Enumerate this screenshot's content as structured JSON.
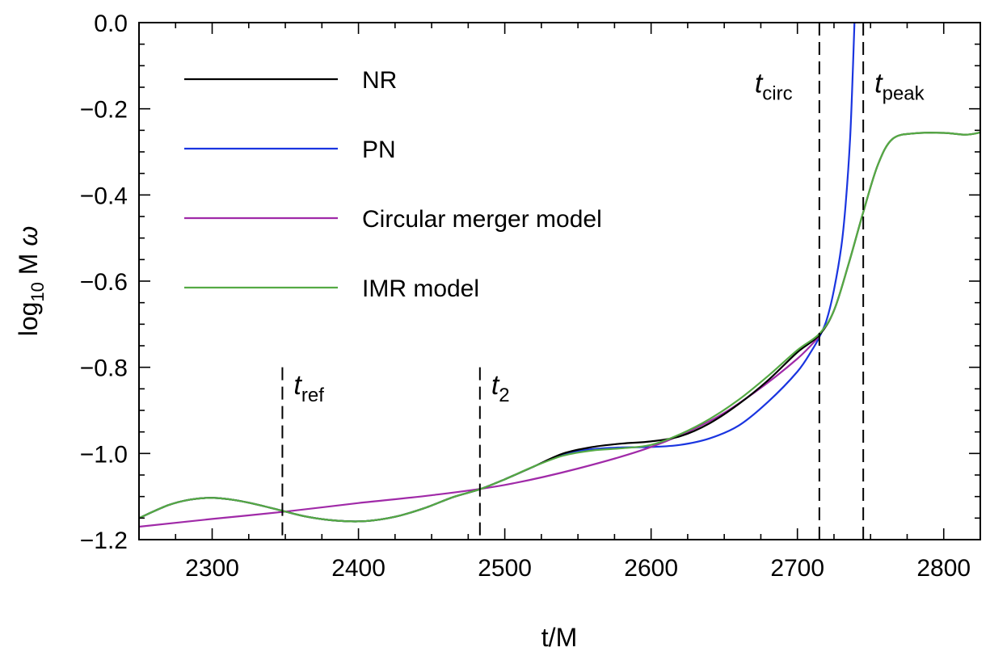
{
  "chart_data": {
    "type": "line",
    "xlabel": "t/M",
    "ylabel": {
      "prefix": "log",
      "subscript": "10",
      "suffix": " M ",
      "symbol": "ω"
    },
    "xlim": [
      2250,
      2825
    ],
    "ylim": [
      -1.2,
      0.0
    ],
    "x_ticks": [
      2300,
      2400,
      2500,
      2600,
      2700,
      2800
    ],
    "x_tick_labels": [
      "2300",
      "2400",
      "2500",
      "2600",
      "2700",
      "2800"
    ],
    "y_ticks": [
      0.0,
      -0.2,
      -0.4,
      -0.6,
      -0.8,
      -1.0,
      -1.2
    ],
    "y_tick_labels": [
      "0.0",
      "−0.2",
      "−0.4",
      "−0.6",
      "−0.8",
      "−1.0",
      "−1.2"
    ],
    "grid": false,
    "legend_position": "top-left",
    "series": [
      {
        "name": "NR",
        "color": "#000000",
        "x": [
          2250,
          2270,
          2285,
          2300,
          2315,
          2330,
          2348,
          2365,
          2385,
          2405,
          2425,
          2445,
          2465,
          2483,
          2500,
          2520,
          2540,
          2560,
          2580,
          2600,
          2620,
          2640,
          2660,
          2680,
          2700,
          2715,
          2725,
          2735,
          2745,
          2755,
          2765,
          2780,
          2800,
          2815,
          2825
        ],
        "y": [
          -1.15,
          -1.12,
          -1.107,
          -1.103,
          -1.108,
          -1.118,
          -1.133,
          -1.147,
          -1.156,
          -1.157,
          -1.147,
          -1.127,
          -1.101,
          -1.083,
          -1.06,
          -1.03,
          -1.0,
          -0.985,
          -0.977,
          -0.972,
          -0.96,
          -0.93,
          -0.885,
          -0.83,
          -0.765,
          -0.725,
          -0.668,
          -0.56,
          -0.44,
          -0.33,
          -0.27,
          -0.257,
          -0.256,
          -0.26,
          -0.255
        ]
      },
      {
        "name": "PN",
        "color": "#1a35e0",
        "x": [
          2250,
          2270,
          2285,
          2300,
          2315,
          2330,
          2348,
          2365,
          2385,
          2405,
          2425,
          2445,
          2465,
          2483,
          2500,
          2520,
          2540,
          2560,
          2580,
          2600,
          2620,
          2640,
          2660,
          2680,
          2700,
          2710,
          2715,
          2720,
          2725,
          2730,
          2733,
          2736,
          2738,
          2739
        ],
        "y": [
          -1.15,
          -1.12,
          -1.107,
          -1.103,
          -1.108,
          -1.118,
          -1.133,
          -1.147,
          -1.156,
          -1.157,
          -1.147,
          -1.127,
          -1.101,
          -1.083,
          -1.06,
          -1.03,
          -1.002,
          -0.99,
          -0.986,
          -0.985,
          -0.98,
          -0.965,
          -0.935,
          -0.88,
          -0.81,
          -0.76,
          -0.73,
          -0.69,
          -0.62,
          -0.52,
          -0.42,
          -0.27,
          -0.1,
          0.0
        ]
      },
      {
        "name": "Circular merger model",
        "color": "#a02aa8",
        "x": [
          2250,
          2300,
          2350,
          2400,
          2450,
          2500,
          2550,
          2600,
          2640,
          2670,
          2700,
          2715
        ],
        "y": [
          -1.17,
          -1.152,
          -1.135,
          -1.115,
          -1.097,
          -1.073,
          -1.035,
          -0.985,
          -0.925,
          -0.86,
          -0.78,
          -0.728
        ]
      },
      {
        "name": "IMR model",
        "color": "#55aa44",
        "x": [
          2250,
          2270,
          2285,
          2300,
          2315,
          2330,
          2348,
          2365,
          2385,
          2405,
          2425,
          2445,
          2465,
          2483,
          2500,
          2520,
          2540,
          2560,
          2580,
          2600,
          2620,
          2640,
          2660,
          2680,
          2700,
          2715,
          2725,
          2735,
          2745,
          2755,
          2765,
          2780,
          2800,
          2815,
          2825
        ],
        "y": [
          -1.15,
          -1.12,
          -1.107,
          -1.103,
          -1.108,
          -1.118,
          -1.133,
          -1.147,
          -1.156,
          -1.157,
          -1.147,
          -1.127,
          -1.101,
          -1.083,
          -1.06,
          -1.03,
          -1.005,
          -0.993,
          -0.988,
          -0.98,
          -0.955,
          -0.92,
          -0.875,
          -0.82,
          -0.76,
          -0.722,
          -0.668,
          -0.56,
          -0.44,
          -0.33,
          -0.27,
          -0.257,
          -0.256,
          -0.26,
          -0.255
        ]
      }
    ],
    "vertical_lines": [
      {
        "x": 2348,
        "y_top": -0.8,
        "label_main": "t",
        "label_sub": "ref",
        "label_y": -0.84
      },
      {
        "x": 2483,
        "y_top": -0.8,
        "label_main": "t",
        "label_sub": "2",
        "label_y": -0.84
      },
      {
        "x": 2715,
        "y_top": 0.0,
        "label_main": "t",
        "label_sub": "circ",
        "label_y": -0.14
      },
      {
        "x": 2745,
        "y_top": 0.0,
        "label_main": "t",
        "label_sub": "peak",
        "label_y": -0.14
      }
    ]
  }
}
